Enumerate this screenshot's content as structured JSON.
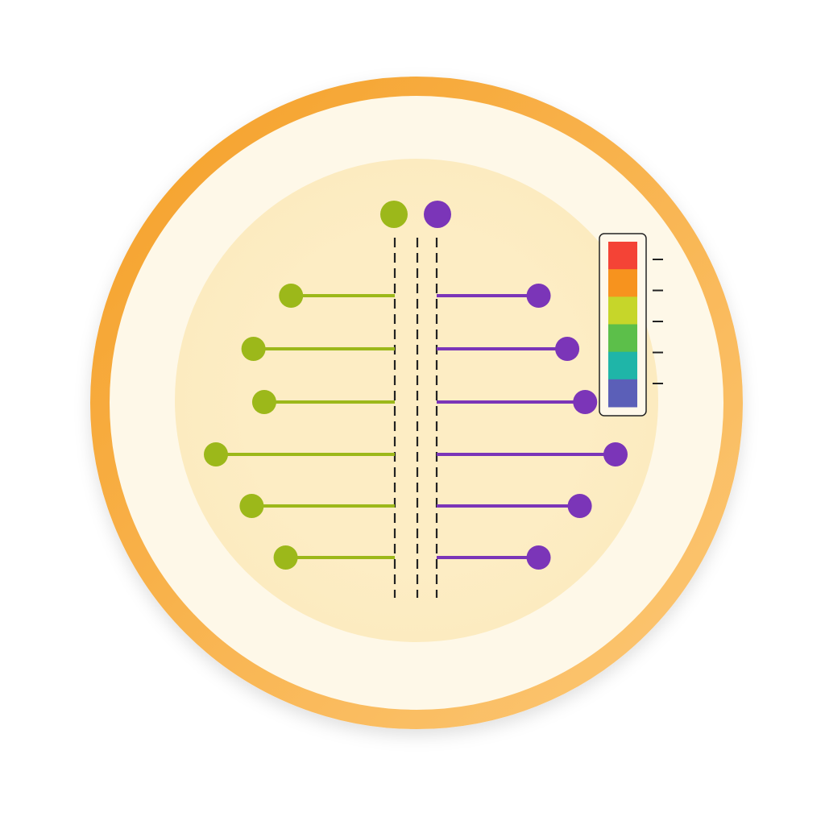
{
  "chart_data": {
    "type": "lollipop-diverging",
    "title": "",
    "xlabel": "",
    "ylabel": "",
    "rows": 6,
    "series": [
      {
        "side": "left",
        "color": "#9cb81a",
        "values": [
          58,
          79,
          73,
          100,
          80,
          61
        ]
      },
      {
        "side": "right",
        "color": "#7b35b8",
        "values": [
          57,
          73,
          83,
          100,
          80,
          57
        ]
      }
    ],
    "value_range": [
      0,
      100
    ],
    "legend": {
      "placement": "top-center",
      "markers": [
        "#9cb81a",
        "#7b35b8"
      ]
    },
    "colorbar": {
      "placement": "right",
      "colors": [
        "#f44336",
        "#f7931e",
        "#c6d62a",
        "#5cbf4a",
        "#1fb5a8",
        "#5b5fb8"
      ],
      "tick_count": 5
    },
    "grid": false
  },
  "colors": {
    "ring": "#f5a331",
    "plate": "#fef8e8",
    "inner": "#fdedc4",
    "dash": "#222222"
  }
}
